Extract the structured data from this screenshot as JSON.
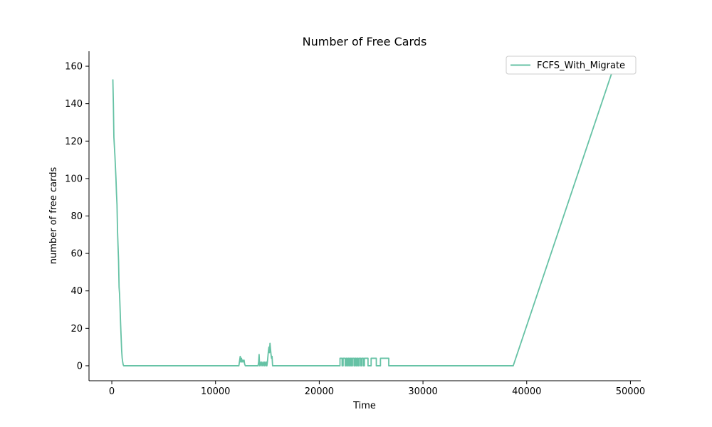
{
  "chart_data": {
    "type": "line",
    "title": "Number of Free Cards",
    "xlabel": "Time",
    "ylabel": "number of free cards",
    "xlim": [
      -2200,
      51000
    ],
    "ylim": [
      -8,
      168
    ],
    "xticks": [
      0,
      10000,
      20000,
      30000,
      40000,
      50000
    ],
    "yticks": [
      0,
      20,
      40,
      60,
      80,
      100,
      120,
      140,
      160
    ],
    "grid": false,
    "legend": "top-right",
    "series": [
      {
        "name": "FCFS_With_Migrate",
        "color": "#66c2a5",
        "points": [
          [
            100,
            153
          ],
          [
            150,
            140
          ],
          [
            200,
            122
          ],
          [
            300,
            112
          ],
          [
            400,
            100
          ],
          [
            450,
            92
          ],
          [
            500,
            86
          ],
          [
            550,
            72
          ],
          [
            600,
            64
          ],
          [
            650,
            56
          ],
          [
            700,
            42
          ],
          [
            750,
            38
          ],
          [
            800,
            30
          ],
          [
            850,
            22
          ],
          [
            900,
            15
          ],
          [
            950,
            8
          ],
          [
            1000,
            4
          ],
          [
            1050,
            2
          ],
          [
            1100,
            0.5
          ],
          [
            1150,
            0
          ],
          [
            12250,
            0
          ],
          [
            12300,
            2
          ],
          [
            12380,
            5
          ],
          [
            12430,
            2
          ],
          [
            12500,
            4
          ],
          [
            12560,
            2
          ],
          [
            12620,
            3
          ],
          [
            12700,
            2
          ],
          [
            12750,
            3
          ],
          [
            12800,
            1
          ],
          [
            12870,
            0
          ],
          [
            14100,
            0
          ],
          [
            14150,
            2
          ],
          [
            14200,
            6
          ],
          [
            14250,
            0
          ],
          [
            14300,
            2
          ],
          [
            14400,
            0
          ],
          [
            14450,
            2
          ],
          [
            14550,
            0
          ],
          [
            14600,
            2
          ],
          [
            14700,
            0
          ],
          [
            14750,
            2
          ],
          [
            14850,
            0
          ],
          [
            14900,
            2
          ],
          [
            14950,
            0
          ],
          [
            15000,
            2
          ],
          [
            15050,
            5
          ],
          [
            15100,
            8
          ],
          [
            15150,
            10
          ],
          [
            15200,
            7
          ],
          [
            15250,
            12
          ],
          [
            15300,
            9
          ],
          [
            15350,
            6
          ],
          [
            15400,
            4
          ],
          [
            15450,
            5
          ],
          [
            15500,
            0
          ],
          [
            22000,
            0
          ],
          [
            22000,
            4
          ],
          [
            22200,
            4
          ],
          [
            22200,
            0
          ],
          [
            22300,
            0
          ],
          [
            22300,
            4
          ],
          [
            22500,
            4
          ],
          [
            22500,
            0
          ],
          [
            22600,
            0
          ],
          [
            22600,
            4
          ],
          [
            22700,
            4
          ],
          [
            22700,
            0
          ],
          [
            22800,
            0
          ],
          [
            22800,
            4
          ],
          [
            22900,
            4
          ],
          [
            22900,
            0
          ],
          [
            23000,
            0
          ],
          [
            23000,
            4
          ],
          [
            23100,
            4
          ],
          [
            23100,
            0
          ],
          [
            23200,
            0
          ],
          [
            23200,
            4
          ],
          [
            23350,
            4
          ],
          [
            23350,
            0
          ],
          [
            23450,
            0
          ],
          [
            23450,
            4
          ],
          [
            23550,
            4
          ],
          [
            23550,
            0
          ],
          [
            23650,
            0
          ],
          [
            23650,
            4
          ],
          [
            23750,
            4
          ],
          [
            23750,
            0
          ],
          [
            23850,
            0
          ],
          [
            23850,
            4
          ],
          [
            24000,
            4
          ],
          [
            24000,
            0
          ],
          [
            24100,
            0
          ],
          [
            24100,
            4
          ],
          [
            24250,
            4
          ],
          [
            24250,
            0
          ],
          [
            24350,
            0
          ],
          [
            24350,
            4
          ],
          [
            24700,
            4
          ],
          [
            24700,
            0
          ],
          [
            25000,
            0
          ],
          [
            25000,
            4
          ],
          [
            25500,
            4
          ],
          [
            25500,
            0
          ],
          [
            25900,
            0
          ],
          [
            25900,
            4
          ],
          [
            26700,
            4
          ],
          [
            26700,
            0
          ],
          [
            38700,
            0
          ],
          [
            48300,
            158
          ]
        ]
      }
    ]
  }
}
